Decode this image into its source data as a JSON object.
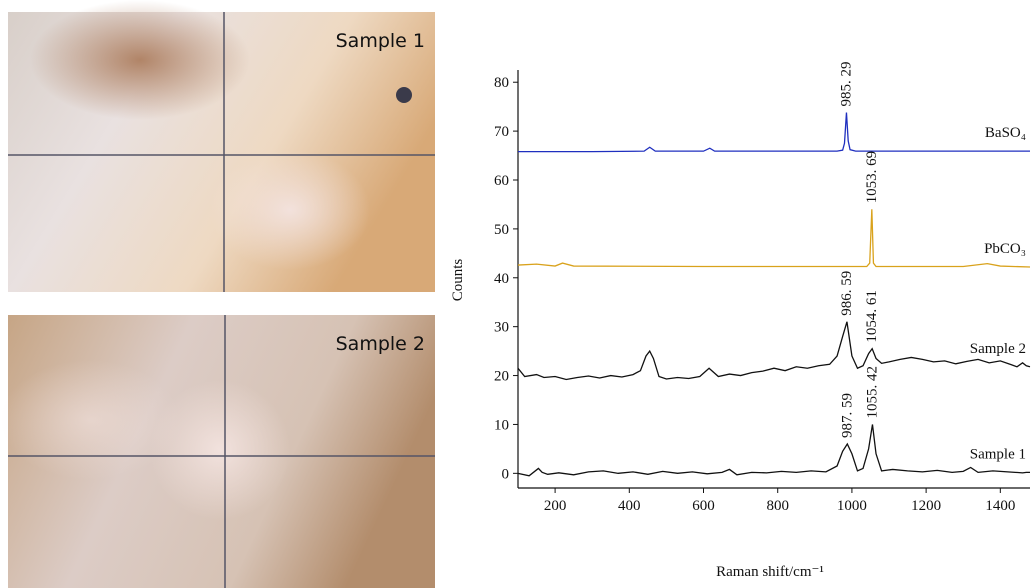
{
  "images": [
    {
      "label": "Sample 1"
    },
    {
      "label": "Sample 2"
    }
  ],
  "chart_data": {
    "type": "line",
    "xlabel": "Raman shift/cm⁻¹",
    "ylabel": "Counts",
    "xlim": [
      100,
      1480
    ],
    "xticks": [
      200,
      400,
      600,
      800,
      1000,
      1200,
      1400
    ],
    "ylim": [
      -3,
      82.5
    ],
    "yticks": [
      0,
      10,
      20,
      30,
      40,
      50,
      60,
      70,
      80
    ],
    "series": [
      {
        "name": "BaSO₄",
        "color": "#1f2fbf",
        "x": [
          100,
          300,
          440,
          455,
          470,
          600,
          617,
          630,
          960,
          975,
          980,
          985.29,
          990,
          995,
          1010,
          1200,
          1400,
          1480
        ],
        "values": [
          65.8,
          65.8,
          65.9,
          66.7,
          65.9,
          65.9,
          66.5,
          65.9,
          65.9,
          66.1,
          67.5,
          73.8,
          68,
          66.2,
          65.9,
          65.9,
          65.9,
          65.9
        ]
      },
      {
        "name": "PbCO₃",
        "color": "#d9a21c",
        "x": [
          100,
          150,
          200,
          220,
          250,
          600,
          1040,
          1048,
          1053.69,
          1058,
          1065,
          1300,
          1365,
          1400,
          1480
        ],
        "values": [
          42.6,
          42.8,
          42.4,
          43,
          42.4,
          42.3,
          42.3,
          43,
          54,
          43,
          42.3,
          42.3,
          42.9,
          42.4,
          42.2
        ]
      },
      {
        "name": "Sample 2",
        "color": "#111111",
        "x": [
          100,
          118,
          150,
          170,
          200,
          230,
          260,
          290,
          320,
          350,
          380,
          410,
          430,
          445,
          455,
          465,
          480,
          500,
          530,
          560,
          590,
          615,
          640,
          670,
          700,
          730,
          760,
          790,
          820,
          850,
          880,
          910,
          940,
          960,
          975,
          986.59,
          1000,
          1015,
          1030,
          1045,
          1054.61,
          1065,
          1080,
          1100,
          1130,
          1160,
          1190,
          1220,
          1250,
          1280,
          1310,
          1340,
          1370,
          1400,
          1430,
          1445,
          1460,
          1470,
          1480
        ],
        "values": [
          21.5,
          19.8,
          20.2,
          19.6,
          19.8,
          19.2,
          19.6,
          19.9,
          19.5,
          20,
          19.7,
          20.2,
          21,
          24,
          25,
          23.5,
          19.8,
          19.3,
          19.6,
          19.4,
          19.8,
          21.5,
          19.8,
          20.3,
          20,
          20.6,
          20.9,
          21.5,
          21,
          21.8,
          21.5,
          22,
          22.3,
          24,
          28,
          31,
          24,
          21.5,
          22,
          24.5,
          25.5,
          23.5,
          22.5,
          22.8,
          23.3,
          23.7,
          23.3,
          22.8,
          23,
          22.4,
          22.9,
          23.3,
          22.6,
          23,
          22.2,
          21.8,
          22.6,
          22,
          21.8
        ]
      },
      {
        "name": "Sample 1",
        "color": "#111111",
        "x": [
          100,
          130,
          155,
          165,
          180,
          210,
          250,
          290,
          330,
          370,
          410,
          450,
          490,
          530,
          570,
          610,
          650,
          670,
          690,
          730,
          770,
          810,
          850,
          890,
          930,
          960,
          975,
          987.59,
          1000,
          1015,
          1030,
          1045,
          1055.42,
          1065,
          1080,
          1110,
          1150,
          1190,
          1230,
          1270,
          1300,
          1320,
          1340,
          1380,
          1420,
          1460,
          1470,
          1480
        ],
        "values": [
          0,
          -0.5,
          1,
          0.2,
          -0.2,
          0.1,
          -0.3,
          0.3,
          0.5,
          0,
          0.3,
          -0.2,
          0.4,
          0,
          0.3,
          -0.1,
          0.2,
          0.8,
          -0.3,
          0.2,
          0.1,
          0.4,
          0.2,
          0.5,
          0.3,
          1.5,
          4.5,
          6,
          4,
          0.5,
          1,
          5,
          10,
          4,
          0.5,
          0.8,
          0.5,
          0.3,
          0.6,
          0.2,
          0.4,
          1.2,
          0.2,
          0.5,
          0.3,
          0.1,
          0.2,
          0.2
        ]
      }
    ],
    "annotations": [
      {
        "text": "985. 29",
        "x": 985.29,
        "y": 73.8
      },
      {
        "text": "1053. 69",
        "x": 1053.69,
        "y": 54
      },
      {
        "text": "986. 59",
        "x": 986.59,
        "y": 31
      },
      {
        "text": "1054. 61",
        "x": 1054.61,
        "y": 25.5
      },
      {
        "text": "987. 59",
        "x": 987.59,
        "y": 6
      },
      {
        "text": "1055. 42",
        "x": 1055.42,
        "y": 10
      }
    ]
  }
}
